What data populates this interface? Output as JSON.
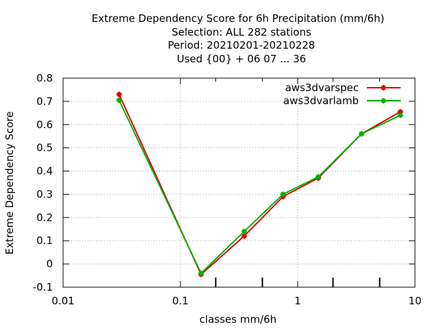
{
  "chart_data": {
    "type": "line",
    "title_lines": [
      "Extreme Dependency Score  for 6h Precipitation (mm/6h)",
      "Selection: ALL    282 stations",
      "Period: 20210201-20210228",
      "Used {00} + 06 07 ... 36"
    ],
    "xlabel": "classes mm/6h",
    "ylabel": "Extreme Dependency Score",
    "x_scale": "log",
    "xlim": [
      0.01,
      10
    ],
    "ylim": [
      -0.1,
      0.8
    ],
    "x_ticks": [
      0.01,
      0.1,
      1,
      10
    ],
    "x_tick_labels": [
      "0.01",
      "0.1",
      "1",
      "10"
    ],
    "x_minor_ticks": [
      0.2,
      0.5,
      2,
      5
    ],
    "y_ticks": [
      -0.1,
      0,
      0.1,
      0.2,
      0.3,
      0.4,
      0.5,
      0.6,
      0.7,
      0.8
    ],
    "y_tick_labels": [
      "-0.1",
      "0",
      "0.1",
      "0.2",
      "0.3",
      "0.4",
      "0.5",
      "0.6",
      "0.7",
      "0.8"
    ],
    "grid": true,
    "legend_position": "top-right",
    "series": [
      {
        "name": "aws3dvarspec",
        "color": "#e00000",
        "x": [
          0.03,
          0.15,
          0.35,
          0.75,
          1.5,
          3.5,
          7.5
        ],
        "y": [
          0.73,
          -0.045,
          0.12,
          0.29,
          0.37,
          0.56,
          0.655
        ]
      },
      {
        "name": "aws3dvarlamb",
        "color": "#00b000",
        "x": [
          0.03,
          0.15,
          0.35,
          0.75,
          1.5,
          3.5,
          7.5
        ],
        "y": [
          0.705,
          -0.04,
          0.14,
          0.3,
          0.375,
          0.56,
          0.64
        ]
      }
    ]
  }
}
